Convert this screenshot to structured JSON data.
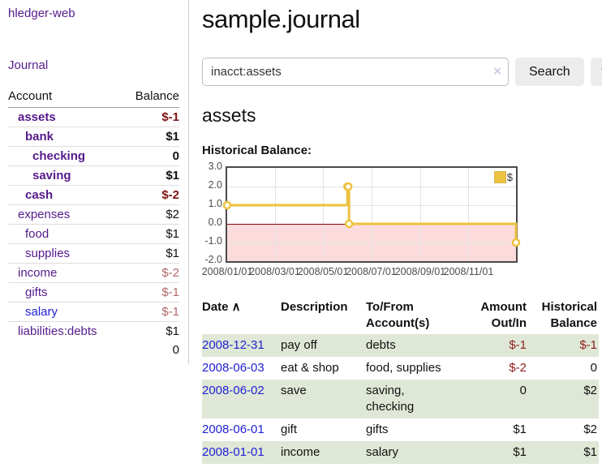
{
  "app": {
    "brand": "hledger-web",
    "nav_journal": "Journal"
  },
  "colors": {
    "purple_link": "#551a8b",
    "blue_link": "#2121d6",
    "negative_dark_red": "#7e1414",
    "negative_red": "#8f1d1d",
    "rose": "#b06868",
    "row_green": "#dfe8d6",
    "chart_gold": "#edc240",
    "negative_region_pink": "#fbdbdb",
    "zero_line_red": "#8b0000"
  },
  "sidebar": {
    "headers": {
      "account": "Account",
      "balance": "Balance"
    },
    "accounts": [
      {
        "name": "assets",
        "indent": 0,
        "balance": "$-1",
        "bold": true,
        "balance_style": "neg",
        "link": "purple"
      },
      {
        "name": "bank",
        "indent": 1,
        "balance": "$1",
        "bold": true,
        "balance_style": "norm",
        "link": "purple"
      },
      {
        "name": "checking",
        "indent": 2,
        "balance": "0",
        "bold": true,
        "balance_style": "norm",
        "link": "purple"
      },
      {
        "name": "saving",
        "indent": 2,
        "balance": "$1",
        "bold": true,
        "balance_style": "norm",
        "link": "purple"
      },
      {
        "name": "cash",
        "indent": 1,
        "balance": "$-2",
        "bold": true,
        "balance_style": "neg",
        "link": "purple"
      },
      {
        "name": "expenses",
        "indent": 0,
        "balance": "$2",
        "bold": false,
        "balance_style": "norm",
        "link": "purple"
      },
      {
        "name": "food",
        "indent": 1,
        "balance": "$1",
        "bold": false,
        "balance_style": "norm",
        "link": "purple"
      },
      {
        "name": "supplies",
        "indent": 1,
        "balance": "$1",
        "bold": false,
        "balance_style": "norm",
        "link": "purple"
      },
      {
        "name": "income",
        "indent": 0,
        "balance": "$-2",
        "bold": false,
        "balance_style": "rose",
        "link": "purple"
      },
      {
        "name": "gifts",
        "indent": 1,
        "balance": "$-1",
        "bold": false,
        "balance_style": "rose",
        "link": "purple"
      },
      {
        "name": "salary",
        "indent": 1,
        "balance": "$-1",
        "bold": false,
        "balance_style": "rose",
        "link": "blue"
      },
      {
        "name": "liabilities:debts",
        "indent": 0,
        "balance": "$1",
        "bold": false,
        "balance_style": "norm",
        "link": "purple"
      }
    ],
    "total": "0"
  },
  "header": {
    "title": "sample.journal"
  },
  "search": {
    "value": "inacct:assets",
    "clear_icon": "×",
    "button_label": "Search",
    "help_label": "?"
  },
  "account_page": {
    "heading": "assets",
    "chart_label": "Historical Balance:"
  },
  "chart_data": {
    "type": "line",
    "step": true,
    "legend": "$",
    "legend_position": "top-right",
    "series": [
      {
        "name": "$",
        "color": "#edc240",
        "points": [
          {
            "date": "2008-01-01",
            "day": 0,
            "value": 1.0
          },
          {
            "date": "2008-06-01",
            "day": 152,
            "value": 2.0
          },
          {
            "date": "2008-06-02",
            "day": 153,
            "value": 2.0
          },
          {
            "date": "2008-06-03",
            "day": 154,
            "value": 0.0
          },
          {
            "date": "2008-12-31",
            "day": 365,
            "value": -1.0
          }
        ]
      }
    ],
    "ylim": [
      -2.0,
      3.0
    ],
    "yticks": [
      {
        "label": "3.0",
        "value": 3
      },
      {
        "label": "2.0",
        "value": 2
      },
      {
        "label": "1.0",
        "value": 1
      },
      {
        "label": "0.0",
        "value": 0
      },
      {
        "label": "-1.0",
        "value": -1
      },
      {
        "label": "-2.0",
        "value": -2
      }
    ],
    "xticks": [
      {
        "label": "2008/01/01",
        "day": 0
      },
      {
        "label": "2008/03/01",
        "day": 60
      },
      {
        "label": "2008/05/01",
        "day": 121
      },
      {
        "label": "2008/07/01",
        "day": 182
      },
      {
        "label": "2008/09/01",
        "day": 244
      },
      {
        "label": "2008/11/01",
        "day": 305
      }
    ],
    "x_range_days": 365,
    "grid": true,
    "negative_region": true
  },
  "register": {
    "sort_icon": "∧",
    "headers": [
      {
        "lines": [
          "Date"
        ],
        "align": "left",
        "sortable": true
      },
      {
        "lines": [
          "Description"
        ],
        "align": "left"
      },
      {
        "lines": [
          "To/From",
          "Account(s)"
        ],
        "align": "left"
      },
      {
        "lines": [
          "Amount",
          "Out/In"
        ],
        "align": "right"
      },
      {
        "lines": [
          "Historical",
          "Balance"
        ],
        "align": "right"
      }
    ],
    "rows": [
      {
        "date": "2008-12-31",
        "description": "pay off",
        "to_from": [
          "debts"
        ],
        "amount": "$-1",
        "amount_neg": true,
        "balance": "$-1",
        "balance_neg": true,
        "green": true
      },
      {
        "date": "2008-06-03",
        "description": "eat & shop",
        "to_from": [
          "food, supplies"
        ],
        "amount": "$-2",
        "amount_neg": true,
        "balance": "0",
        "balance_neg": false,
        "green": false
      },
      {
        "date": "2008-06-02",
        "description": "save",
        "to_from": [
          "saving,",
          "checking"
        ],
        "amount": "0",
        "amount_neg": false,
        "balance": "$2",
        "balance_neg": false,
        "green": true
      },
      {
        "date": "2008-06-01",
        "description": "gift",
        "to_from": [
          "gifts"
        ],
        "amount": "$1",
        "amount_neg": false,
        "balance": "$2",
        "balance_neg": false,
        "green": false
      },
      {
        "date": "2008-01-01",
        "description": "income",
        "to_from": [
          "salary"
        ],
        "amount": "$1",
        "amount_neg": false,
        "balance": "$1",
        "balance_neg": false,
        "green": true
      }
    ]
  }
}
